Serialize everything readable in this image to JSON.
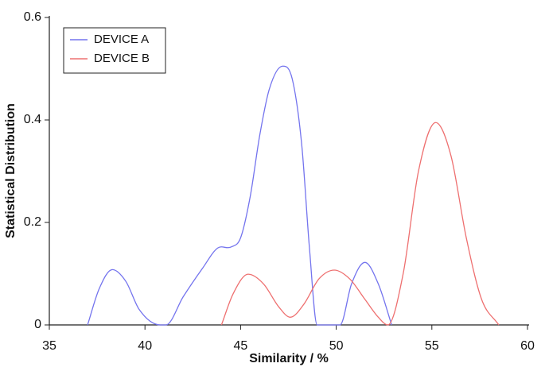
{
  "chart_data": {
    "type": "line",
    "x_label": "Similarity / %",
    "y_label": "Statistical Distribution",
    "xlim": [
      35,
      60
    ],
    "xticks": [
      35,
      40,
      45,
      50,
      55,
      60
    ],
    "ylim": [
      0,
      0.6
    ],
    "yticks": [
      0,
      0.2,
      0.4,
      0.6
    ],
    "legend": "upper left",
    "series": [
      {
        "name": "DEVICE A",
        "color": "#7474ee",
        "x": [
          37,
          37.6,
          38.3,
          39,
          39.7,
          40.8,
          41.1,
          42,
          43,
          43.8,
          44.5,
          45,
          45.5,
          46,
          46.5,
          47.2,
          47.7,
          48.2,
          48.6,
          49,
          50.2,
          50.8,
          51.5,
          52.2,
          52.9
        ],
        "values": [
          0,
          0.07,
          0.108,
          0.085,
          0.03,
          0,
          0,
          0.055,
          0.11,
          0.15,
          0.152,
          0.17,
          0.25,
          0.37,
          0.46,
          0.505,
          0.48,
          0.35,
          0.15,
          0,
          0,
          0.08,
          0.122,
          0.08,
          0
        ]
      },
      {
        "name": "DEVICE B",
        "color": "#ee7070",
        "x": [
          44,
          44.6,
          45.4,
          46.2,
          47,
          47.6,
          48.3,
          49.1,
          49.9,
          50.7,
          51.5,
          52.2,
          52.7,
          53.5,
          54.3,
          55.2,
          56,
          56.8,
          57.6,
          58.5
        ],
        "values": [
          0,
          0.06,
          0.099,
          0.08,
          0.035,
          0.015,
          0.04,
          0.09,
          0.107,
          0.09,
          0.05,
          0.015,
          0,
          0.1,
          0.3,
          0.395,
          0.33,
          0.17,
          0.05,
          0
        ]
      }
    ]
  }
}
